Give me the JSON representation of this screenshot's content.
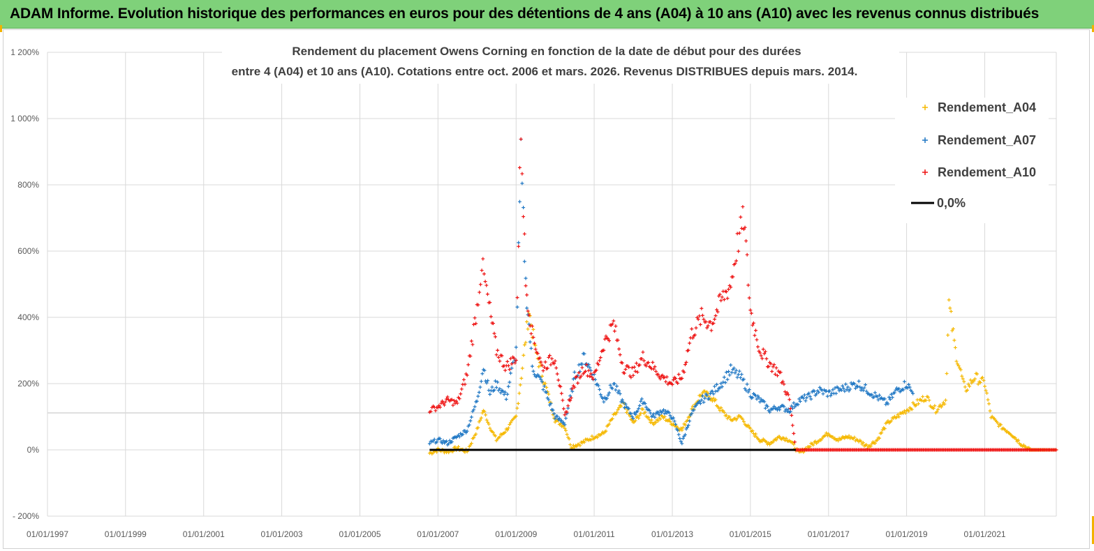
{
  "banner": {
    "title": "ADAM Informe. Evolution historique des performances en euros pour des détentions de 4 ans (A04) à 10 ans (A10) avec les revenus connus distribués"
  },
  "colors": {
    "banner_bg": "#7fd17a",
    "A04": "#f5b800",
    "A07": "#1f77c4",
    "A10": "#ee1111",
    "zero": "#000000"
  },
  "chart_data": {
    "type": "scatter",
    "title_lines": [
      "Rendement du placement Owens Corning en fonction de la date de début pour des durées",
      "entre 4 (A04) et 10 ans (A10).  Cotations entre oct. 2006 et mars. 2026. Revenus DISTRIBUES depuis mars. 2014."
    ],
    "x_axis": {
      "min": "1997-01-01",
      "max": "2022-11-01",
      "tick_labels": [
        "01/01/1997",
        "01/01/1999",
        "01/01/2001",
        "01/01/2003",
        "01/01/2005",
        "01/01/2007",
        "01/01/2009",
        "01/01/2011",
        "01/01/2013",
        "01/01/2015",
        "01/01/2017",
        "01/01/2019",
        "01/01/2021"
      ]
    },
    "y_axis": {
      "min": -200,
      "max": 1200,
      "unit": "%",
      "tick_values": [
        -200,
        0,
        200,
        400,
        600,
        800,
        1000,
        1200
      ],
      "tick_labels": [
        "- 200%",
        "0%",
        "200%",
        "400%",
        "600%",
        "800%",
        "1 000%",
        "1 200%"
      ]
    },
    "grid": true,
    "legend_position": "top-right",
    "series": [
      {
        "name": "Rendement_A04",
        "color": "#f5b800",
        "points": [
          [
            "2006-10-15",
            -10
          ],
          [
            "2007-01-01",
            0
          ],
          [
            "2007-04-01",
            -5
          ],
          [
            "2007-07-01",
            5
          ],
          [
            "2007-10-01",
            -5
          ],
          [
            "2008-01-01",
            60
          ],
          [
            "2008-03-01",
            120
          ],
          [
            "2008-05-01",
            70
          ],
          [
            "2008-07-01",
            30
          ],
          [
            "2008-10-01",
            60
          ],
          [
            "2009-01-01",
            100
          ],
          [
            "2009-03-01",
            250
          ],
          [
            "2009-05-01",
            420
          ],
          [
            "2009-07-01",
            300
          ],
          [
            "2009-09-01",
            230
          ],
          [
            "2009-11-01",
            160
          ],
          [
            "2010-01-01",
            90
          ],
          [
            "2010-04-01",
            70
          ],
          [
            "2010-06-01",
            10
          ],
          [
            "2010-09-01",
            20
          ],
          [
            "2011-01-01",
            40
          ],
          [
            "2011-04-01",
            50
          ],
          [
            "2011-07-01",
            100
          ],
          [
            "2011-10-01",
            140
          ],
          [
            "2012-01-01",
            80
          ],
          [
            "2012-04-01",
            120
          ],
          [
            "2012-07-01",
            80
          ],
          [
            "2012-10-01",
            100
          ],
          [
            "2013-01-01",
            80
          ],
          [
            "2013-04-01",
            60
          ],
          [
            "2013-07-01",
            120
          ],
          [
            "2013-10-01",
            170
          ],
          [
            "2014-01-01",
            160
          ],
          [
            "2014-04-01",
            120
          ],
          [
            "2014-07-01",
            90
          ],
          [
            "2014-10-01",
            100
          ],
          [
            "2015-01-01",
            60
          ],
          [
            "2015-04-01",
            30
          ],
          [
            "2015-07-01",
            20
          ],
          [
            "2015-10-01",
            40
          ],
          [
            "2016-01-01",
            30
          ],
          [
            "2016-04-01",
            -10
          ],
          [
            "2016-07-01",
            10
          ],
          [
            "2016-10-01",
            30
          ],
          [
            "2017-01-01",
            50
          ],
          [
            "2017-04-01",
            30
          ],
          [
            "2017-07-01",
            40
          ],
          [
            "2017-10-01",
            30
          ],
          [
            "2018-01-01",
            10
          ],
          [
            "2018-04-01",
            30
          ],
          [
            "2018-07-01",
            80
          ],
          [
            "2018-10-01",
            100
          ],
          [
            "2019-01-01",
            120
          ],
          [
            "2019-04-01",
            140
          ],
          [
            "2019-07-01",
            160
          ],
          [
            "2019-10-01",
            120
          ],
          [
            "2020-01-01",
            150
          ],
          [
            "2020-02-01",
            440
          ],
          [
            "2020-04-01",
            300
          ],
          [
            "2020-07-01",
            180
          ],
          [
            "2020-10-01",
            220
          ],
          [
            "2021-01-01",
            200
          ],
          [
            "2021-03-01",
            100
          ],
          [
            "2021-06-01",
            70
          ],
          [
            "2021-09-01",
            50
          ],
          [
            "2021-12-01",
            20
          ],
          [
            "2022-03-01",
            0
          ],
          [
            "2022-11-01",
            0
          ]
        ]
      },
      {
        "name": "Rendement_A07",
        "color": "#1f77c4",
        "points": [
          [
            "2006-10-15",
            20
          ],
          [
            "2007-01-01",
            30
          ],
          [
            "2007-04-01",
            20
          ],
          [
            "2007-07-01",
            40
          ],
          [
            "2007-10-01",
            60
          ],
          [
            "2008-01-01",
            150
          ],
          [
            "2008-03-01",
            250
          ],
          [
            "2008-05-01",
            170
          ],
          [
            "2008-07-01",
            200
          ],
          [
            "2008-10-01",
            160
          ],
          [
            "2009-01-01",
            300
          ],
          [
            "2009-02-15",
            880
          ],
          [
            "2009-04-01",
            500
          ],
          [
            "2009-06-01",
            250
          ],
          [
            "2009-09-01",
            200
          ],
          [
            "2010-01-01",
            100
          ],
          [
            "2010-04-01",
            80
          ],
          [
            "2010-07-01",
            220
          ],
          [
            "2010-10-01",
            280
          ],
          [
            "2011-01-01",
            220
          ],
          [
            "2011-04-01",
            150
          ],
          [
            "2011-07-01",
            200
          ],
          [
            "2011-10-01",
            140
          ],
          [
            "2012-01-01",
            100
          ],
          [
            "2012-04-01",
            150
          ],
          [
            "2012-07-01",
            100
          ],
          [
            "2012-10-01",
            120
          ],
          [
            "2013-01-01",
            100
          ],
          [
            "2013-04-01",
            20
          ],
          [
            "2013-07-01",
            110
          ],
          [
            "2013-10-01",
            150
          ],
          [
            "2014-01-01",
            170
          ],
          [
            "2014-04-01",
            200
          ],
          [
            "2014-07-01",
            240
          ],
          [
            "2014-10-01",
            220
          ],
          [
            "2015-01-01",
            170
          ],
          [
            "2015-04-01",
            150
          ],
          [
            "2015-07-01",
            120
          ],
          [
            "2015-10-01",
            130
          ],
          [
            "2016-01-01",
            120
          ],
          [
            "2016-04-01",
            150
          ],
          [
            "2016-07-01",
            160
          ],
          [
            "2016-10-01",
            180
          ],
          [
            "2017-01-01",
            170
          ],
          [
            "2017-04-01",
            180
          ],
          [
            "2017-07-01",
            190
          ],
          [
            "2017-10-01",
            200
          ],
          [
            "2018-01-01",
            180
          ],
          [
            "2018-04-01",
            160
          ],
          [
            "2018-07-01",
            140
          ],
          [
            "2018-10-01",
            180
          ],
          [
            "2019-01-01",
            200
          ],
          [
            "2019-03-01",
            170
          ]
        ]
      },
      {
        "name": "Rendement_A10",
        "color": "#ee1111",
        "points": [
          [
            "2006-10-15",
            120
          ],
          [
            "2007-01-01",
            130
          ],
          [
            "2007-04-01",
            150
          ],
          [
            "2007-07-01",
            140
          ],
          [
            "2007-10-01",
            230
          ],
          [
            "2008-01-01",
            430
          ],
          [
            "2008-02-15",
            560
          ],
          [
            "2008-05-01",
            420
          ],
          [
            "2008-07-01",
            300
          ],
          [
            "2008-10-01",
            250
          ],
          [
            "2009-01-01",
            280
          ],
          [
            "2009-02-15",
            980
          ],
          [
            "2009-04-01",
            500
          ],
          [
            "2009-06-01",
            350
          ],
          [
            "2009-09-01",
            250
          ],
          [
            "2010-01-01",
            280
          ],
          [
            "2010-04-01",
            100
          ],
          [
            "2010-07-01",
            200
          ],
          [
            "2010-10-01",
            250
          ],
          [
            "2011-01-01",
            220
          ],
          [
            "2011-04-01",
            320
          ],
          [
            "2011-07-01",
            380
          ],
          [
            "2011-10-01",
            250
          ],
          [
            "2012-01-01",
            230
          ],
          [
            "2012-04-01",
            280
          ],
          [
            "2012-07-01",
            250
          ],
          [
            "2012-10-01",
            220
          ],
          [
            "2013-01-01",
            200
          ],
          [
            "2013-04-01",
            220
          ],
          [
            "2013-07-01",
            350
          ],
          [
            "2013-10-01",
            400
          ],
          [
            "2014-01-01",
            380
          ],
          [
            "2014-04-01",
            450
          ],
          [
            "2014-07-01",
            500
          ],
          [
            "2014-09-01",
            620
          ],
          [
            "2014-11-01",
            700
          ],
          [
            "2015-01-01",
            420
          ],
          [
            "2015-04-01",
            300
          ],
          [
            "2015-07-01",
            260
          ],
          [
            "2015-10-01",
            230
          ],
          [
            "2016-01-01",
            150
          ],
          [
            "2016-03-01",
            0
          ],
          [
            "2022-11-01",
            0
          ]
        ]
      },
      {
        "name": "0,0%",
        "color": "#000000",
        "points": [
          [
            "2006-10-15",
            0
          ],
          [
            "2016-03-01",
            0
          ]
        ]
      }
    ]
  }
}
